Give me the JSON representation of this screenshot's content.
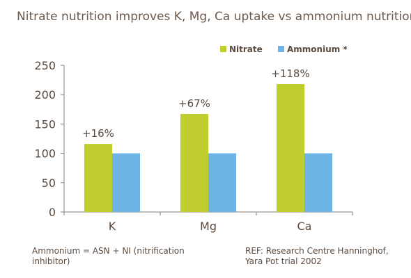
{
  "title": "Nitrate nutrition improves K, Mg, Ca uptake vs ammonium nutrition",
  "footnote_left": "Ammonium = ASN + NI (nitrification inhibitor)",
  "footnote_right": "REF: Research Centre Hanninghof, Yara Pot trial 2002",
  "chart_data": {
    "type": "bar",
    "categories": [
      "K",
      "Mg",
      "Ca"
    ],
    "series": [
      {
        "name": "Nitrate",
        "color": "#bfcd2f",
        "values": [
          116,
          167,
          218
        ]
      },
      {
        "name": "Ammonium *",
        "color": "#6cb4e6",
        "values": [
          100,
          100,
          100
        ]
      }
    ],
    "annotations": [
      "+16%",
      "+67%",
      "+118%"
    ],
    "ylim": [
      0,
      250
    ],
    "yticks": [
      0,
      50,
      100,
      150,
      200,
      250
    ],
    "legend": "top-right",
    "grid": false
  }
}
